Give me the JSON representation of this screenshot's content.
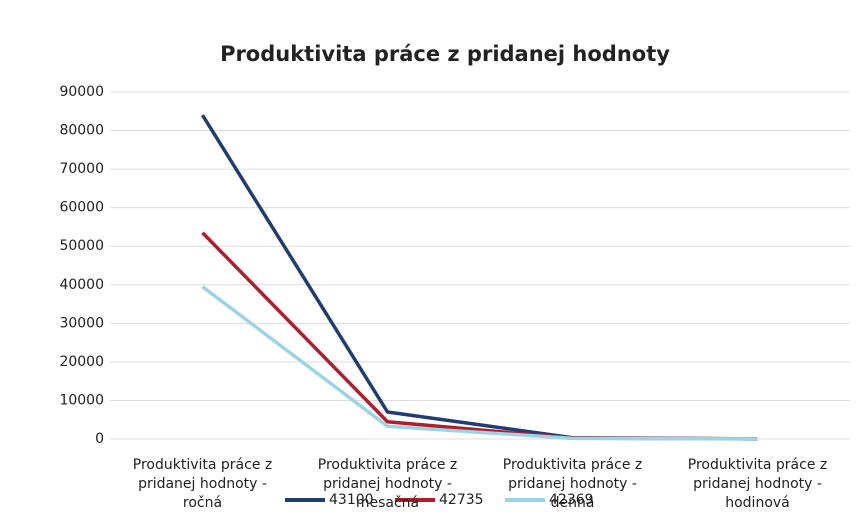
{
  "chart_data": {
    "type": "line",
    "title": "Produktivita práce z pridanej hodnoty",
    "categories": [
      "Produktivita práce z pridanej hodnoty - ročná",
      "Produktivita práce z pridanej hodnoty - mesačná",
      "Produktivita práce z pridanej hodnoty - denná",
      "Produktivita práce z pridanej hodnoty - hodinová"
    ],
    "series": [
      {
        "name": "43100",
        "color": "#1f3c73",
        "values": [
          84000,
          7000,
          330,
          41
        ]
      },
      {
        "name": "42735",
        "color": "#b01d2b",
        "values": [
          53500,
          4460,
          212,
          27
        ]
      },
      {
        "name": "42369",
        "color": "#9bd4e4",
        "values": [
          39500,
          3290,
          157,
          20
        ]
      }
    ],
    "ylim": [
      0,
      90000
    ],
    "yticks": [
      0,
      10000,
      20000,
      30000,
      40000,
      50000,
      60000,
      70000,
      80000,
      90000
    ],
    "grid": true,
    "legend": "bottom"
  }
}
